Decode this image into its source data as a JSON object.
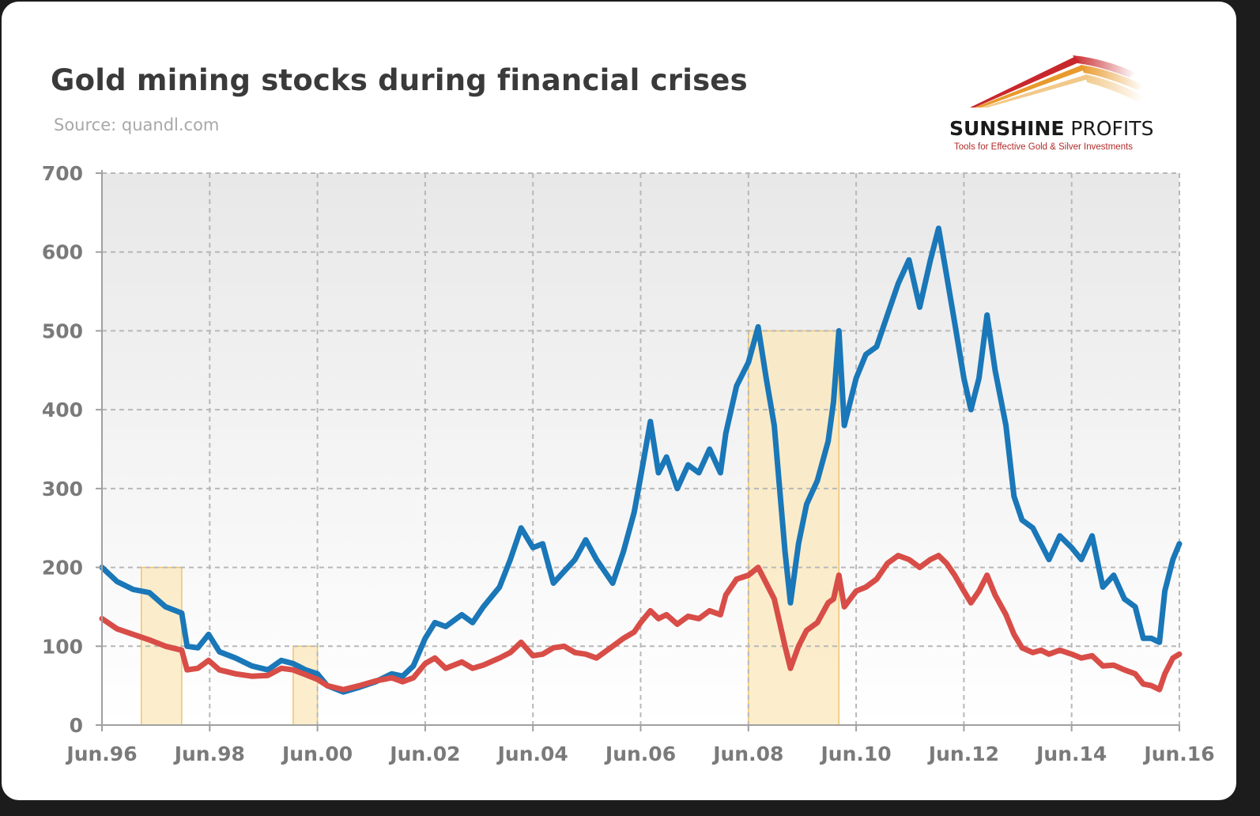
{
  "header": {
    "title": "Gold mining stocks during financial crises",
    "source": "Source: quandl.com"
  },
  "logo": {
    "name_bold": "SUNSHINE",
    "name_light": "PROFITS",
    "tagline": "Tools for Effective Gold & Silver Investments",
    "colors": [
      "#c8282c",
      "#e89a2c",
      "#f2c98a"
    ]
  },
  "chart_data": {
    "type": "line",
    "title": "Gold mining stocks during financial crises",
    "xlabel": "",
    "ylabel": "",
    "xlim": [
      1996.42,
      2016.42
    ],
    "ylim": [
      0,
      700
    ],
    "yticks": [
      0,
      100,
      200,
      300,
      400,
      500,
      600,
      700
    ],
    "xticks": [
      {
        "x": 1996.42,
        "label": "Jun.96"
      },
      {
        "x": 1998.42,
        "label": "Jun.98"
      },
      {
        "x": 2000.42,
        "label": "Jun.00"
      },
      {
        "x": 2002.42,
        "label": "Jun.02"
      },
      {
        "x": 2004.42,
        "label": "Jun.04"
      },
      {
        "x": 2006.42,
        "label": "Jun.06"
      },
      {
        "x": 2008.42,
        "label": "Jun.08"
      },
      {
        "x": 2010.42,
        "label": "Jun.10"
      },
      {
        "x": 2012.42,
        "label": "Jun.12"
      },
      {
        "x": 2014.42,
        "label": "Jun.14"
      },
      {
        "x": 2016.42,
        "label": "Jun.16"
      }
    ],
    "grid": true,
    "legend": "none",
    "crisis_periods": [
      {
        "x0": 1997.15,
        "x1": 1997.9,
        "ymax": 200
      },
      {
        "x0": 1999.97,
        "x1": 2000.42,
        "ymax": 100
      },
      {
        "x0": 2008.42,
        "x1": 2010.1,
        "ymax": 500
      }
    ],
    "series": [
      {
        "color": "#1a77b8",
        "points": [
          [
            1996.42,
            200
          ],
          [
            1996.7,
            182
          ],
          [
            1997.0,
            172
          ],
          [
            1997.3,
            168
          ],
          [
            1997.6,
            150
          ],
          [
            1997.9,
            142
          ],
          [
            1998.0,
            100
          ],
          [
            1998.2,
            98
          ],
          [
            1998.4,
            115
          ],
          [
            1998.6,
            93
          ],
          [
            1998.9,
            85
          ],
          [
            1999.2,
            75
          ],
          [
            1999.5,
            70
          ],
          [
            1999.75,
            82
          ],
          [
            1999.97,
            78
          ],
          [
            2000.2,
            70
          ],
          [
            2000.42,
            65
          ],
          [
            2000.6,
            50
          ],
          [
            2000.9,
            42
          ],
          [
            2001.2,
            48
          ],
          [
            2001.5,
            55
          ],
          [
            2001.8,
            65
          ],
          [
            2002.0,
            62
          ],
          [
            2002.2,
            75
          ],
          [
            2002.42,
            110
          ],
          [
            2002.6,
            130
          ],
          [
            2002.8,
            125
          ],
          [
            2003.1,
            140
          ],
          [
            2003.3,
            130
          ],
          [
            2003.5,
            150
          ],
          [
            2003.8,
            175
          ],
          [
            2004.0,
            210
          ],
          [
            2004.2,
            250
          ],
          [
            2004.42,
            225
          ],
          [
            2004.6,
            230
          ],
          [
            2004.8,
            180
          ],
          [
            2005.0,
            195
          ],
          [
            2005.2,
            210
          ],
          [
            2005.4,
            235
          ],
          [
            2005.6,
            210
          ],
          [
            2005.9,
            180
          ],
          [
            2006.1,
            220
          ],
          [
            2006.3,
            270
          ],
          [
            2006.42,
            315
          ],
          [
            2006.6,
            385
          ],
          [
            2006.75,
            320
          ],
          [
            2006.9,
            340
          ],
          [
            2007.1,
            300
          ],
          [
            2007.3,
            330
          ],
          [
            2007.5,
            320
          ],
          [
            2007.7,
            350
          ],
          [
            2007.9,
            320
          ],
          [
            2008.0,
            370
          ],
          [
            2008.2,
            430
          ],
          [
            2008.42,
            460
          ],
          [
            2008.6,
            505
          ],
          [
            2008.75,
            440
          ],
          [
            2008.9,
            380
          ],
          [
            2009.0,
            300
          ],
          [
            2009.1,
            220
          ],
          [
            2009.2,
            155
          ],
          [
            2009.35,
            230
          ],
          [
            2009.5,
            280
          ],
          [
            2009.7,
            310
          ],
          [
            2009.9,
            360
          ],
          [
            2010.0,
            410
          ],
          [
            2010.1,
            500
          ],
          [
            2010.2,
            380
          ],
          [
            2010.42,
            440
          ],
          [
            2010.6,
            470
          ],
          [
            2010.8,
            480
          ],
          [
            2011.0,
            520
          ],
          [
            2011.2,
            560
          ],
          [
            2011.4,
            590
          ],
          [
            2011.6,
            530
          ],
          [
            2011.8,
            590
          ],
          [
            2011.95,
            630
          ],
          [
            2012.1,
            570
          ],
          [
            2012.25,
            510
          ],
          [
            2012.42,
            440
          ],
          [
            2012.55,
            400
          ],
          [
            2012.7,
            440
          ],
          [
            2012.85,
            520
          ],
          [
            2013.0,
            450
          ],
          [
            2013.2,
            380
          ],
          [
            2013.35,
            290
          ],
          [
            2013.5,
            260
          ],
          [
            2013.7,
            250
          ],
          [
            2013.85,
            230
          ],
          [
            2014.0,
            210
          ],
          [
            2014.2,
            240
          ],
          [
            2014.42,
            225
          ],
          [
            2014.6,
            210
          ],
          [
            2014.8,
            240
          ],
          [
            2015.0,
            175
          ],
          [
            2015.2,
            190
          ],
          [
            2015.4,
            160
          ],
          [
            2015.6,
            150
          ],
          [
            2015.75,
            110
          ],
          [
            2015.9,
            110
          ],
          [
            2016.05,
            105
          ],
          [
            2016.15,
            170
          ],
          [
            2016.3,
            210
          ],
          [
            2016.42,
            230
          ]
        ]
      },
      {
        "color": "#d84d47",
        "points": [
          [
            1996.42,
            135
          ],
          [
            1996.7,
            122
          ],
          [
            1997.0,
            115
          ],
          [
            1997.3,
            108
          ],
          [
            1997.6,
            100
          ],
          [
            1997.9,
            95
          ],
          [
            1998.0,
            70
          ],
          [
            1998.2,
            72
          ],
          [
            1998.4,
            82
          ],
          [
            1998.6,
            70
          ],
          [
            1998.9,
            65
          ],
          [
            1999.2,
            62
          ],
          [
            1999.5,
            63
          ],
          [
            1999.75,
            72
          ],
          [
            1999.97,
            70
          ],
          [
            2000.2,
            64
          ],
          [
            2000.42,
            58
          ],
          [
            2000.6,
            50
          ],
          [
            2000.9,
            45
          ],
          [
            2001.2,
            50
          ],
          [
            2001.5,
            56
          ],
          [
            2001.8,
            60
          ],
          [
            2002.0,
            55
          ],
          [
            2002.2,
            60
          ],
          [
            2002.42,
            78
          ],
          [
            2002.6,
            85
          ],
          [
            2002.8,
            72
          ],
          [
            2003.1,
            80
          ],
          [
            2003.3,
            72
          ],
          [
            2003.5,
            76
          ],
          [
            2003.8,
            85
          ],
          [
            2004.0,
            92
          ],
          [
            2004.2,
            105
          ],
          [
            2004.42,
            88
          ],
          [
            2004.6,
            90
          ],
          [
            2004.8,
            98
          ],
          [
            2005.0,
            100
          ],
          [
            2005.2,
            92
          ],
          [
            2005.4,
            90
          ],
          [
            2005.6,
            85
          ],
          [
            2005.9,
            100
          ],
          [
            2006.1,
            110
          ],
          [
            2006.3,
            118
          ],
          [
            2006.42,
            130
          ],
          [
            2006.6,
            145
          ],
          [
            2006.75,
            135
          ],
          [
            2006.9,
            140
          ],
          [
            2007.1,
            128
          ],
          [
            2007.3,
            138
          ],
          [
            2007.5,
            135
          ],
          [
            2007.7,
            145
          ],
          [
            2007.9,
            140
          ],
          [
            2008.0,
            165
          ],
          [
            2008.2,
            185
          ],
          [
            2008.42,
            190
          ],
          [
            2008.6,
            200
          ],
          [
            2008.75,
            180
          ],
          [
            2008.9,
            160
          ],
          [
            2009.0,
            130
          ],
          [
            2009.1,
            100
          ],
          [
            2009.2,
            72
          ],
          [
            2009.35,
            100
          ],
          [
            2009.5,
            120
          ],
          [
            2009.7,
            130
          ],
          [
            2009.9,
            155
          ],
          [
            2010.0,
            160
          ],
          [
            2010.1,
            190
          ],
          [
            2010.2,
            150
          ],
          [
            2010.42,
            170
          ],
          [
            2010.6,
            175
          ],
          [
            2010.8,
            185
          ],
          [
            2011.0,
            205
          ],
          [
            2011.2,
            215
          ],
          [
            2011.4,
            210
          ],
          [
            2011.6,
            200
          ],
          [
            2011.8,
            210
          ],
          [
            2011.95,
            215
          ],
          [
            2012.1,
            205
          ],
          [
            2012.25,
            190
          ],
          [
            2012.42,
            170
          ],
          [
            2012.55,
            155
          ],
          [
            2012.7,
            170
          ],
          [
            2012.85,
            190
          ],
          [
            2013.0,
            165
          ],
          [
            2013.2,
            140
          ],
          [
            2013.35,
            115
          ],
          [
            2013.5,
            98
          ],
          [
            2013.7,
            92
          ],
          [
            2013.85,
            95
          ],
          [
            2014.0,
            90
          ],
          [
            2014.2,
            95
          ],
          [
            2014.42,
            90
          ],
          [
            2014.6,
            85
          ],
          [
            2014.8,
            88
          ],
          [
            2015.0,
            75
          ],
          [
            2015.2,
            76
          ],
          [
            2015.4,
            70
          ],
          [
            2015.6,
            65
          ],
          [
            2015.75,
            52
          ],
          [
            2015.9,
            50
          ],
          [
            2016.05,
            45
          ],
          [
            2016.15,
            65
          ],
          [
            2016.3,
            85
          ],
          [
            2016.42,
            90
          ]
        ]
      }
    ]
  }
}
